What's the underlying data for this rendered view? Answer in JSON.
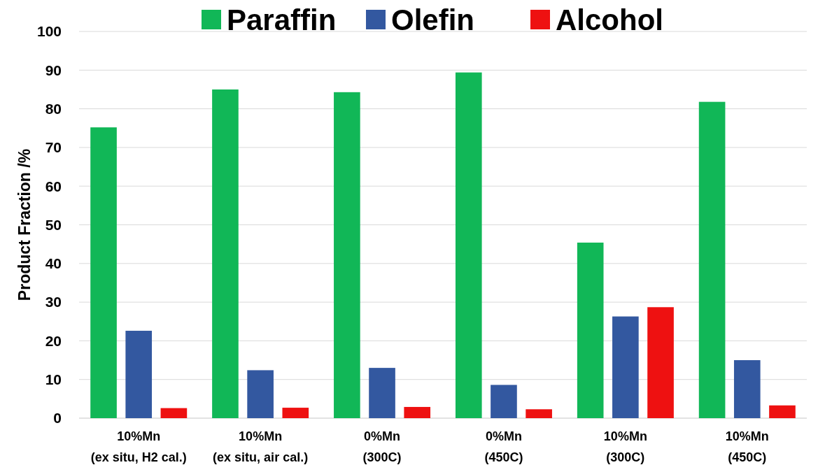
{
  "chart_data": {
    "type": "bar",
    "ylabel": "Product Fraction /%",
    "categories": [
      "10%Mn\n(ex situ, H2 cal.)",
      "10%Mn\n(ex situ, air cal.)",
      "0%Mn\n(300C)",
      "0%Mn\n(450C)",
      "10%Mn\n(300C)",
      "10%Mn\n(450C)"
    ],
    "series": [
      {
        "name": "Paraffin",
        "color": "#11b757",
        "values": [
          75.2,
          85,
          84.3,
          89.4,
          45.4,
          81.8
        ]
      },
      {
        "name": "Olefin",
        "color": "#3358a0",
        "values": [
          22.6,
          12.4,
          13,
          8.6,
          26.3,
          15
        ]
      },
      {
        "name": "Alcohol",
        "color": "#ee1111",
        "values": [
          2.6,
          2.7,
          2.9,
          2.3,
          28.7,
          3.3
        ]
      }
    ],
    "ylim": [
      0,
      100
    ],
    "yticks": [
      0,
      10,
      20,
      30,
      40,
      50,
      60,
      70,
      80,
      90,
      100
    ],
    "grid": "y",
    "legend": "top"
  }
}
